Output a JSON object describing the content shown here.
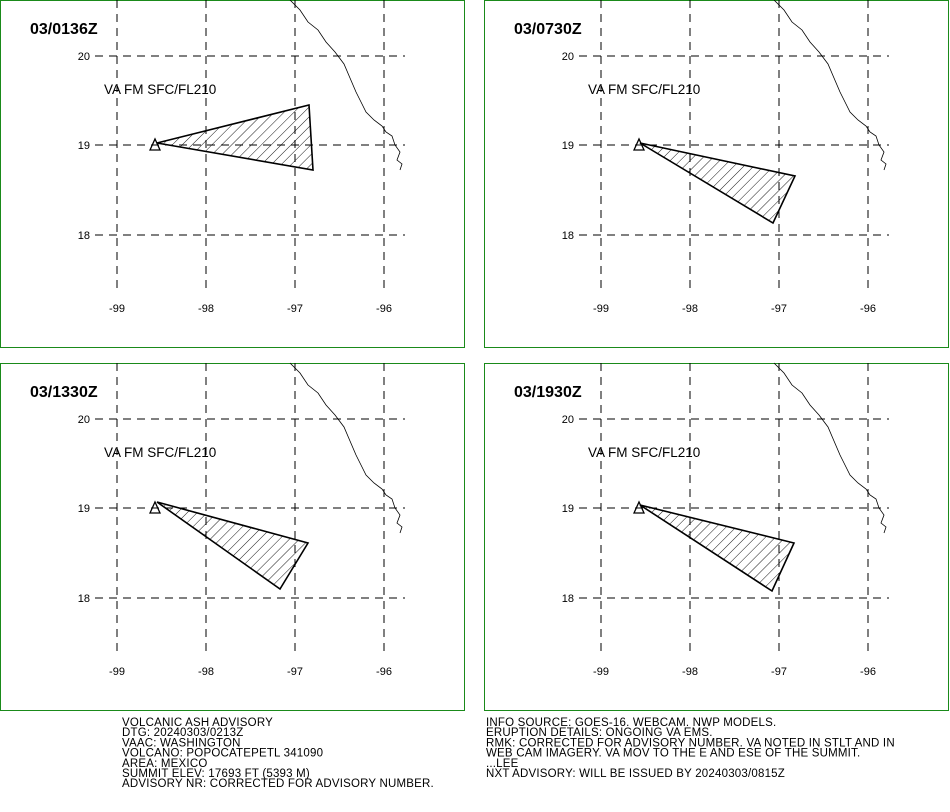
{
  "panels": [
    {
      "time": "03/0136Z",
      "label": "VA FM SFC/FL210"
    },
    {
      "time": "03/0730Z",
      "label": "VA FM SFC/FL210"
    },
    {
      "time": "03/1330Z",
      "label": "VA FM SFC/FL210"
    },
    {
      "time": "03/1930Z",
      "label": "VA FM SFC/FL210"
    }
  ],
  "axes": {
    "lon_labels": [
      "-99",
      "-98",
      "-97",
      "-96"
    ],
    "lat_labels": [
      "20",
      "19",
      "18"
    ]
  },
  "footer": {
    "left": [
      "VOLCANIC ASH ADVISORY",
      "DTG: 20240303/0213Z",
      "VAAC: WASHINGTON",
      "VOLCANO: POPOCATEPETL 341090",
      "AREA: MEXICO",
      "SUMMIT ELEV: 17693 FT (5393 M)",
      "ADVISORY NR: CORRECTED FOR ADVISORY NUMBER."
    ],
    "right": [
      "INFO SOURCE: GOES-16. WEBCAM. NWP MODELS.",
      "ERUPTION DETAILS: ONGOING VA EMS.",
      "RMK: CORRECTED FOR ADVISORY NUMBER. VA NOTED IN STLT AND IN",
      "WEB CAM IMAGERY. VA MOV TO THE E AND ESE OF THE SUMMIT.",
      "...LEE",
      "NXT ADVISORY: WILL BE ISSUED BY 20240303/0815Z"
    ]
  }
}
